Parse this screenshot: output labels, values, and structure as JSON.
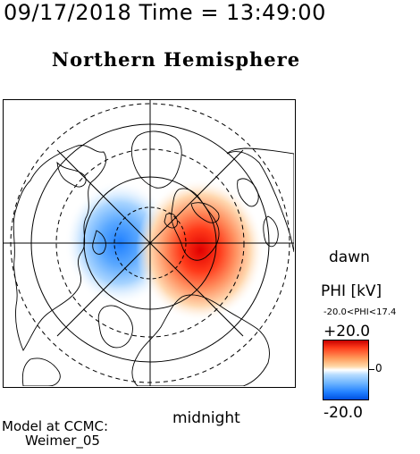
{
  "header": {
    "timestamp": "09/17/2018 Time = 13:49:00"
  },
  "map": {
    "title": "Northern Hemisphere",
    "orientation_labels": {
      "dawn": "dawn",
      "midnight": "midnight"
    }
  },
  "colorbar": {
    "label": "PHI [kV]",
    "range_text": "-20.0<PHI<17.4",
    "max_label": "+20.0",
    "zero_label": "0",
    "min_label": "-20.0",
    "colors": {
      "positive": "#e00000",
      "neutral": "#ffffff",
      "negative": "#0050e0"
    }
  },
  "footer": {
    "model_line1": "Model at CCMC:",
    "model_line2": "Weimer_05"
  }
}
